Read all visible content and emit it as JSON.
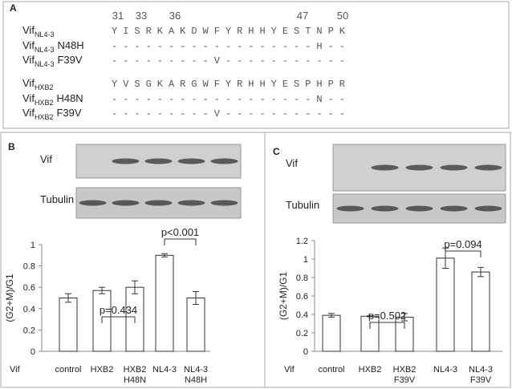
{
  "panel_a": {
    "label": "A",
    "positions": [
      31,
      33,
      36,
      47,
      50
    ],
    "rows": [
      {
        "name": "Vif",
        "subscript": "NL4-3",
        "sequence": "Y I S R K A K D W F Y R H H Y E S T N P K"
      },
      {
        "name": "Vif",
        "subscript": "NL4-3",
        "suffix": "N48H",
        "sequence": "- - - - - - - - - - - - - - - - - - H - -"
      },
      {
        "name": "Vif",
        "subscript": "NL4-3",
        "suffix": "F39V",
        "sequence": "- - - - - - - - - V - - - - - - - - - - -"
      },
      {
        "name": "Vif",
        "subscript": "HXB2",
        "sequence": "Y V S G K A R G W F Y R H H Y E S P H P R"
      },
      {
        "name": "Vif",
        "subscript": "HXB2",
        "suffix": "H48N",
        "sequence": "- - - - - - - - - - - - - - - - - - N - -"
      },
      {
        "name": "Vif",
        "subscript": "HXB2",
        "suffix": "F39V",
        "sequence": "- - - - - - - - - V - - - - - - - - - - -"
      }
    ]
  },
  "chart_data": [
    {
      "type": "bar",
      "panel": "B",
      "blot_labels": [
        "Vif",
        "Tubulin"
      ],
      "ylabel": "(G2+M)/G1",
      "xlabel": "Vif",
      "categories": [
        "control",
        "HXB2",
        "HXB2 H48N",
        "NL4-3",
        "NL4-3 N48H"
      ],
      "values": [
        0.5,
        0.57,
        0.6,
        0.9,
        0.5
      ],
      "errors": [
        0.04,
        0.03,
        0.06,
        0.015,
        0.06
      ],
      "color": "#ffffff",
      "ylim": [
        0,
        1
      ],
      "yticks": [
        0,
        0.2,
        0.4,
        0.6,
        0.8,
        1
      ],
      "annotations": [
        {
          "text": "p=0.434"
        },
        {
          "text": "p<0.001"
        }
      ]
    },
    {
      "type": "bar",
      "panel": "C",
      "blot_labels": [
        "Vif",
        "Tubulin"
      ],
      "ylabel": "(G2+M)/G1",
      "xlabel": "Vif",
      "categories": [
        "control",
        "HXB2",
        "HXB2 F39V",
        "NL4-3",
        "NL4-3 F39V"
      ],
      "values": [
        0.39,
        0.38,
        0.37,
        1.01,
        0.86
      ],
      "errors": [
        0.02,
        0.005,
        0.04,
        0.11,
        0.05
      ],
      "color": "#ffffff",
      "ylim": [
        0,
        1.2
      ],
      "yticks": [
        0,
        0.2,
        0.4,
        0.6,
        0.8,
        1,
        1.2
      ],
      "annotations": [
        {
          "text": "p=0.502"
        },
        {
          "text": "p=0.094"
        }
      ]
    }
  ]
}
